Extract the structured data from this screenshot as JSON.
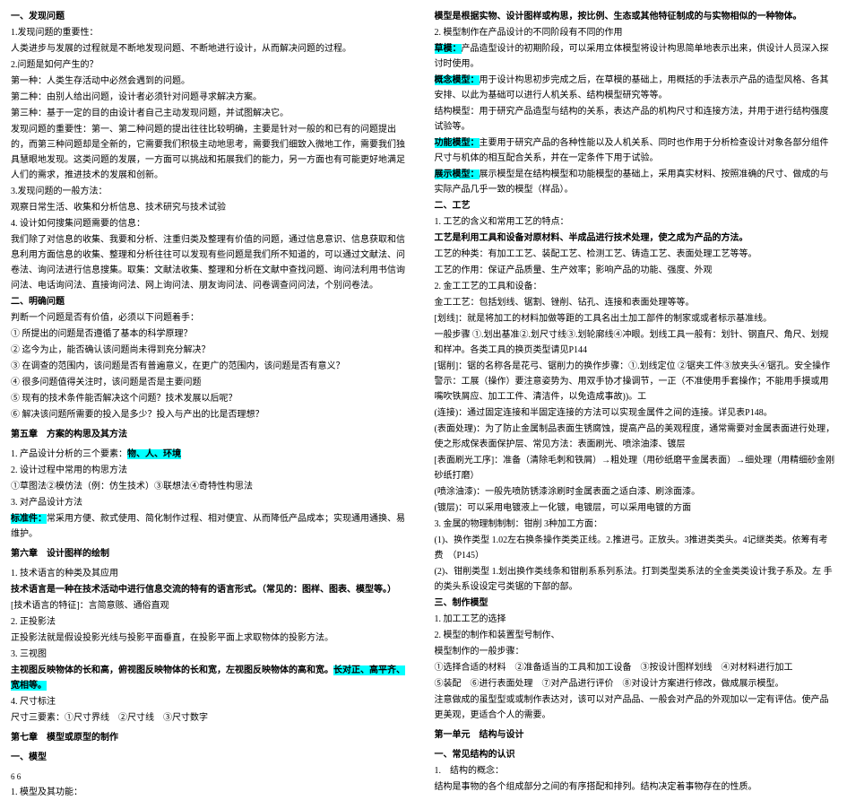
{
  "left": {
    "sec1_title": "一、发现问题",
    "l1": "1.发现问题的重要性：",
    "l2": "人类进步与发展的过程就是不断地发现问题、不断地进行设计，从而解决问题的过程。",
    "l3": "2.问题是如何产生的？",
    "l4": "第一种：人类生存活动中必然会遇到的问题。",
    "l5": "第二种：由别人给出问题，设计者必须针对问题寻求解决方案。",
    "l6": "第三种：基于一定的目的由设计者自己主动发现问题，并试图解决它。",
    "l7": "发现问题的重要性：第一、第二种问题的提出往往比较明确，主要是针对一般的和已有的问题提出的，而第三种问题却是全新的，它需要我们积极主动地思考，需要我们细致入微地工作，需要我们独具慧眼地发现。这类问题的发展，一方面可以挑战和拓展我们的能力，另一方面也有可能更好地满足人们的需求，推进技术的发展和创新。",
    "l8": "3.发现问题的一般方法：",
    "l9": "观察日常生活、收集和分析信息、技术研究与技术试验",
    "l10": "4. 设计如何搜集问题需要的信息：",
    "l11": "我们除了对信息的收集、我要和分析、注重归类及整理有价值的问题，通过信息意识、信息获取和信息利用方面信息的收集、整理和分析往往可以发现有些问题是我们所不知道的，可以通过文献法、问卷法、询问法进行信息搜集。取集：文献法收集、整理和分析在文献中查找问题、询问法利用书信询问法、电话询问法、直接询问法、网上询问法、朋友询问法、问卷调查问问法，个别问卷法。",
    "sec2_title": "二、明确问题",
    "l12": "判断一个问题是否有价值，必须以下问题着手：",
    "l13": "① 所提出的问题是否遵循了基本的科学原理？",
    "l14": "② 迄今为止，能否确认该问题尚未得到充分解决？",
    "l15": "③ 在调查的范围内，该问题是否有普遍意义，在更广的范围内，该问题是否有意义？",
    "l16": "④ 很多问题值得关注时，该问题是否是主要问题",
    "l17": "⑤ 现有的技术条件能否解决这个问题？技术发展以后呢？",
    "l18": "⑥ 解决该问题所需要的投入是多少？投入与产出的比是否理想？",
    "sec3_title": "第五章　方案的构思及其方法",
    "l19": "1. 产品设计分析的三个要素：",
    "l19_hl": "物、人、环境",
    "l20": "2. 设计过程中常用的构思方法",
    "l21": "①草图法②模仿法（例：仿生技术）③联想法④奇特性构思法",
    "l22": "3. 对产品设计方法",
    "l23_hl": "标准件：",
    "l23": "常采用方便、款式使用、简化制作过程、相对便宜、从而降低产品成本；实现通用通换、易维护。",
    "sec4_title": "第六章　设计图样的绘制",
    "l24": "1. 技术语言的种类及其应用",
    "l25": "技术语言是一种在技术活动中进行信息交流的特有的语言形式。（常见的：图样、图表、模型等。）",
    "l26": "[技术语言的特征]：言简意赅、通俗直观",
    "l27": "2. 正投影法",
    "l28": "正投影法就是假设投影光线与投影平面垂直，在投影平面上求取物体的投影方法。",
    "l29": "3. 三视图",
    "l30a": "主视图反映物体的长和高，俯视图反映物体的长和宽，左视图反映物体的高和宽。",
    "l30_hl": "长对正、高平齐、宽相等。",
    "l31": "4. 尺寸标注",
    "l32": "尺寸三要素：①尺寸界线　②尺寸线　③尺寸数字",
    "sec5_title": "第七章　模型或原型的制作",
    "sec6_title": "一、模型",
    "footer": "6 6"
  },
  "right": {
    "r1": "1. 模型及其功能：",
    "r2": "模型是根据实物、设计图样或构思，按比例、生态或其他特征制成的与实物相似的一种物体。",
    "r3": "2. 模型制作在产品设计的不同阶段有不同的作用",
    "r4_hl": "草模：",
    "r4": "产品造型设计的初期阶段，可以采用立体模型将设计构思简单地表示出来，供设计人员深入探讨时使用。",
    "r5_hl": "概念模型：",
    "r5": "用于设计构思初步完成之后，在草模的基础上，用概括的手法表示产品的造型风格、各其安排、以此为基础可以进行人机关系、结构模型研究等等。",
    "r6a": "结构模型：用于研究产品造型与结构的关系，表达产品的机构尺寸和连接方法，并用于进行结构强度试验等。",
    "r6_hl": "功能模型：",
    "r6": "主要用于研究产品的各种性能以及人机关系、同时也作用于分析检查设计对象各部分组件尺寸与机体的相互配合关系，并在一定条件下用于试验。",
    "r7_hl": "展示模型：",
    "r7": "展示模型是在结构模型和功能模型的基础上，采用真实材料、按照准确的尺寸、做成的与实际产品几乎一致的模型（样品）。",
    "sec_r1": "二、工艺",
    "r8": "1. 工艺的含义和常用工艺的特点：",
    "r9": "工艺是利用工具和设备对原材料、半成品进行技术处理，使之成为产品的方法。",
    "r10": "工艺的种类：有加工工艺、装配工艺、检测工艺、铸造工艺、表面处理工艺等等。",
    "r11": "工艺的作用：保证产品质量、生产效率；影响产品的功能、强度、外观",
    "r12": "2. 金工工艺的工具和设备：",
    "r13": "金工工艺：包括划线、锯割、锉削、钻孔、连接和表面处理等等。",
    "r14": "[划线]：就是将加工的材料加做等距的工具名出土加工部件的制家或或者标示基准线。",
    "r15": "一般步骤 ①.划出基准②.划尺寸线③.划轮廓线④冲眼。划线工具一般有：划针、钢直尺、角尺、划规和样冲。各类工具的换页类型请见P144",
    "r16": "[锯削]：锯的名称各是花弓、锯削力的换作步骤：①.划线定位 ②锯夹工件③放夹头④锯孔。安全操作警示：工展（操作）要注意姿势为、用双手协才操调节，一正（不准使用手套操作；不能用手摸或用嘴吹铁屑应、加工工件、清洁件，以免造成事故))。工",
    "r17": "(连接)：通过固定连接和半固定连接的方法可以实现金属件之间的连接。详见表P148。",
    "r18": "(表面处理)：为了防止金属制品表面生锈腐蚀，提高产品的美观程度，通常需要对金属表面进行处理，使之形成保表面保护层、常见方法：表面刷光、喷涂油漆、镀层",
    "r19": "[表面刷光工序]：准备（清除毛刺和铁屑）→粗处理（用砂纸磨平金属表面）→细处理（用精细砂金刚砂纸打磨）",
    "r20": "(喷涂油漆)：一般先喷防锈漆涂刷时金属表面之适白漆、刷涂面漆。",
    "r21": "(镀层)：可以采用电镀液上一化镀，电镀层，可以采用电镀的方面",
    "r22": "3. 金属的物理制制制：钳削 3种加工方面：",
    "r23": "(1)、换作类型 1.02左右换条操作类类正线。2.推进弓。正放头。3推进类类头。4记继类类。依筹有考费　（P145）",
    "r24": "(2)、钳削类型 1.划出换作类线条和钳削系系列系法。打到类型类系法的全金类类设计我子系及。左 手的类头系设设定弓类锯的下部的部。",
    "sec_r2": "三、制作模型",
    "r25": "1. 加工工艺的选择",
    "r26": "2. 模型的制作和装置型号制作、",
    "r27": "模型制作的一般步骤：",
    "r28": "①选择合适的材料　②准备适当的工具和加工设备　③按设计图样划线　④对材料进行加工",
    "r29": "⑤装配　⑥进行表面处理　⑦对产品进行评价　⑧对设计方案进行修改，做成展示模型。",
    "r30": "注意做成的虽型型或或制作表达对，该可以对产品品、一般会对产品的外观加以一定有评估。使产品更美观，更适合个人的需要。",
    "sec_r3": "第一单元　结构与设计",
    "sec_r4": "一、常见结构的认识",
    "r31": "1.　结构的概念：",
    "r32": "结构是事物的各个组成部分之间的有序搭配和排列。结构决定着事物存在的性质。"
  }
}
